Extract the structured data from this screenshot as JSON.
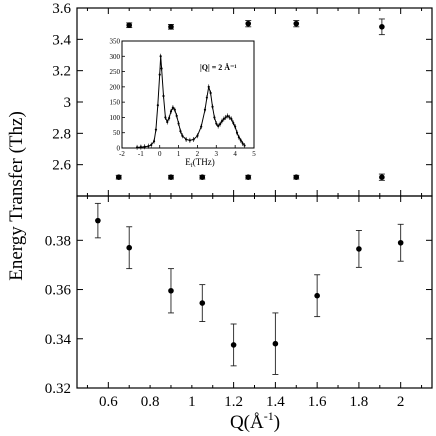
{
  "chart_data": [
    {
      "type": "scatter",
      "panel": "top",
      "ylim": [
        2.4,
        3.6
      ],
      "xlim": [
        0.45,
        2.15
      ],
      "yticks": [
        2.6,
        2.8,
        3.0,
        3.2,
        3.4,
        3.6
      ],
      "ytick_labels": [
        "2.6",
        "2.8",
        "3",
        "3.2",
        "3.4",
        "3.6"
      ],
      "series": [
        {
          "x": [
            0.7,
            0.9,
            1.27,
            1.5,
            1.91
          ],
          "y": [
            3.49,
            3.48,
            3.5,
            3.5,
            3.48
          ],
          "err": [
            0.015,
            0.015,
            0.02,
            0.02,
            0.05
          ]
        },
        {
          "x": [
            0.65,
            0.9,
            1.05,
            1.27,
            1.5,
            1.91
          ],
          "y": [
            2.52,
            2.52,
            2.52,
            2.52,
            2.52,
            2.52
          ],
          "err": [
            0.012,
            0.012,
            0.012,
            0.012,
            0.012,
            0.02
          ]
        }
      ]
    },
    {
      "type": "scatter",
      "panel": "bottom",
      "xlim": [
        0.45,
        2.15
      ],
      "ylim": [
        0.32,
        0.398
      ],
      "xticks": [
        0.6,
        0.8,
        1.0,
        1.2,
        1.4,
        1.6,
        1.8,
        2.0
      ],
      "xtick_labels": [
        "0.6",
        "0.8",
        "1",
        "1.2",
        "1.4",
        "1.6",
        "1.8",
        "2"
      ],
      "yticks": [
        0.32,
        0.34,
        0.36,
        0.38
      ],
      "ytick_labels": [
        "0.32",
        "0.34",
        "0.36",
        "0.38"
      ],
      "series": [
        {
          "x": [
            0.55,
            0.7,
            0.9,
            1.05,
            1.2,
            1.4,
            1.6,
            1.8,
            2.0
          ],
          "y": [
            0.388,
            0.377,
            0.3595,
            0.3545,
            0.3375,
            0.338,
            0.3575,
            0.3765,
            0.379
          ],
          "err": [
            0.007,
            0.0085,
            0.009,
            0.0075,
            0.0085,
            0.0125,
            0.0085,
            0.0075,
            0.0075
          ]
        }
      ]
    },
    {
      "type": "line",
      "panel": "inset",
      "xlim": [
        -2,
        5
      ],
      "ylim": [
        0,
        350
      ],
      "xticks": [
        -2,
        -1,
        0,
        1,
        2,
        3,
        4,
        5
      ],
      "yticks": [
        0,
        50,
        100,
        150,
        200,
        250,
        300,
        350
      ],
      "annotation": "|Q| = 2 Å⁻¹",
      "x": [
        -1.2,
        -1.0,
        -0.8,
        -0.6,
        -0.45,
        -0.3,
        -0.2,
        -0.1,
        0.0,
        0.05,
        0.1,
        0.2,
        0.3,
        0.4,
        0.5,
        0.6,
        0.7,
        0.8,
        0.9,
        1.0,
        1.1,
        1.2,
        1.4,
        1.6,
        1.8,
        2.0,
        2.2,
        2.4,
        2.5,
        2.6,
        2.7,
        2.8,
        2.9,
        3.0,
        3.1,
        3.2,
        3.3,
        3.4,
        3.5,
        3.6,
        3.7,
        3.8,
        3.9,
        4.0,
        4.1,
        4.2,
        4.3,
        4.4,
        4.5
      ],
      "y": [
        2,
        3,
        4,
        6,
        10,
        22,
        60,
        140,
        240,
        300,
        260,
        170,
        100,
        85,
        98,
        120,
        132,
        125,
        105,
        80,
        55,
        40,
        28,
        25,
        28,
        40,
        70,
        125,
        165,
        200,
        180,
        135,
        100,
        80,
        72,
        78,
        88,
        95,
        100,
        105,
        100,
        95,
        82,
        70,
        50,
        35,
        25,
        15,
        8
      ]
    }
  ],
  "axis_labels": {
    "y": "Energy Transfer (Thz)",
    "x": "Q(Å",
    "x_sup": "-1",
    "x_close": ")",
    "inset_x": "E",
    "inset_x_sub": "f",
    "inset_x_unit": "(THz)"
  }
}
